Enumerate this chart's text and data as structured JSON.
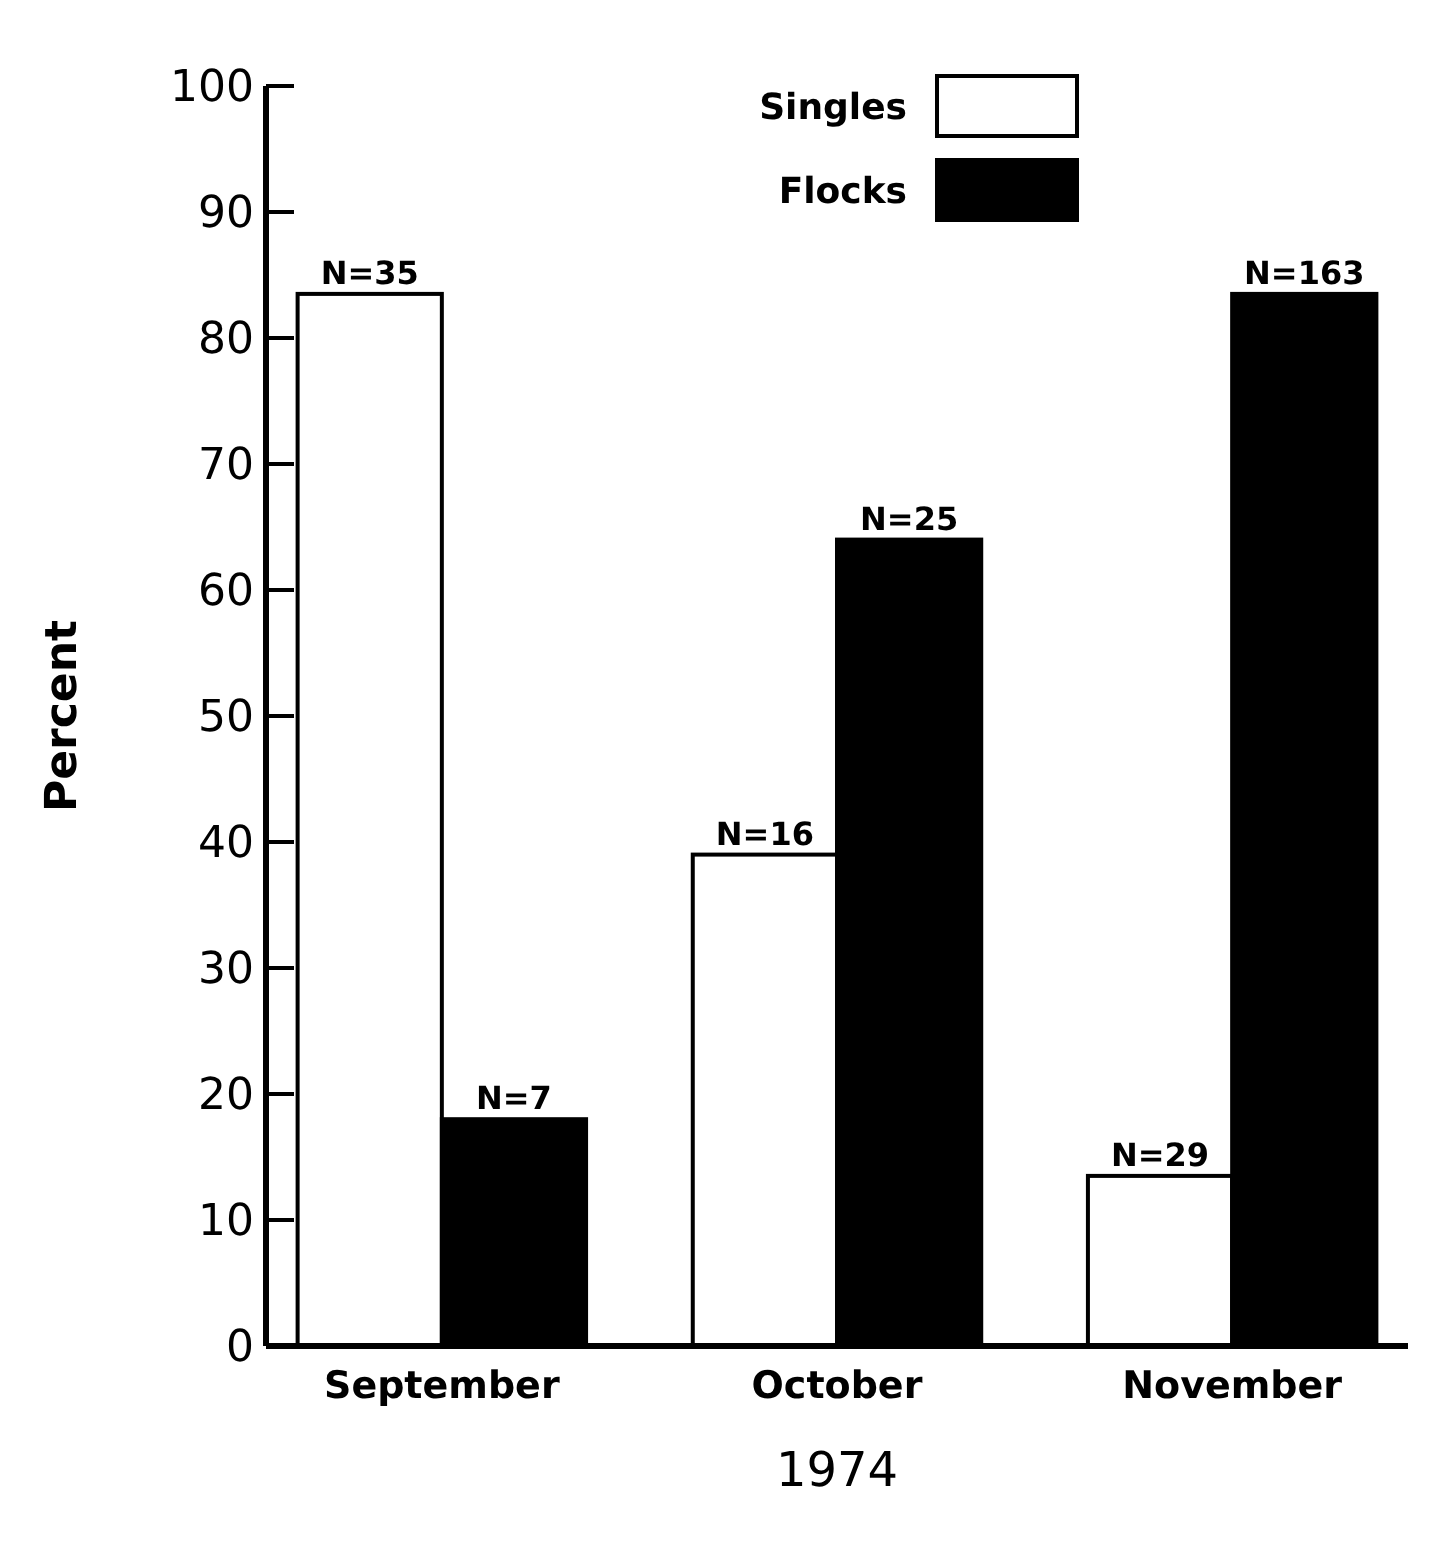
{
  "chart_data": {
    "type": "bar",
    "xlabel": "1974",
    "ylabel": "Percent",
    "categories": [
      "September",
      "October",
      "November"
    ],
    "series": [
      {
        "name": "Singles",
        "color": "#ffffff",
        "values": [
          83.5,
          39,
          13.5
        ]
      },
      {
        "name": "Flocks",
        "color": "#000000",
        "values": [
          18,
          64,
          83.5
        ]
      }
    ],
    "annotations": [
      {
        "text": "N=35",
        "x": "September",
        "y": 83.5
      },
      {
        "text": "N=7",
        "x": "September",
        "y": 18
      },
      {
        "text": "N=16",
        "x": "October",
        "y": 39
      },
      {
        "text": "N=25",
        "x": "October",
        "y": 64
      },
      {
        "text": "N=29",
        "x": "November",
        "y": 13.5
      },
      {
        "text": "N=163",
        "x": "November",
        "y": 83.5
      }
    ],
    "ylim": [
      0,
      100
    ],
    "yticks": [
      0,
      10,
      20,
      30,
      40,
      50,
      60,
      70,
      80,
      90,
      100
    ],
    "legend": "top",
    "grid": false
  }
}
